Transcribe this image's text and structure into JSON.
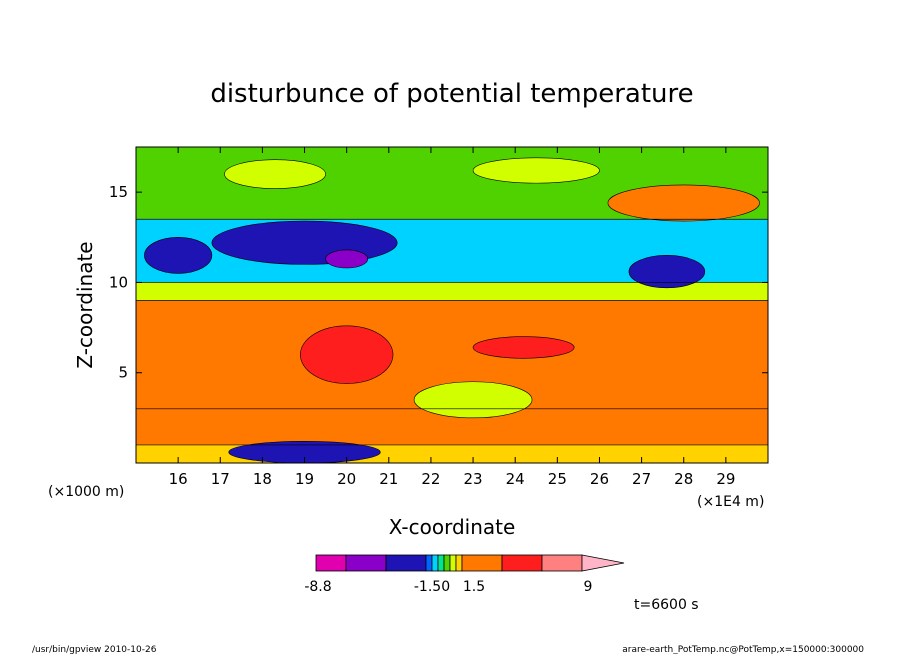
{
  "chart_data": {
    "type": "heatmap",
    "title": "disturbunce of potential temperature",
    "xlabel": "X-coordinate",
    "ylabel": "Z-coordinate",
    "x_units_left": "(×1000 m)",
    "x_units_right": "(×1E4 m)",
    "x_ticks": [
      16,
      17,
      18,
      19,
      20,
      21,
      22,
      23,
      24,
      25,
      26,
      27,
      28,
      29
    ],
    "y_ticks": [
      5,
      10,
      15
    ],
    "xlim": [
      15.0,
      30.0
    ],
    "ylim": [
      0.0,
      17.5
    ],
    "colorbar": {
      "labels": [
        "-8.8",
        "-1.50",
        "1.5",
        "9"
      ],
      "colors": [
        "#e000b0",
        "#8a00c8",
        "#1e14b4",
        "#0064ff",
        "#00d2ff",
        "#00e68c",
        "#50d200",
        "#d2ff00",
        "#ffd200",
        "#ff7800",
        "#ff1e1e",
        "#ff8080",
        "#ffb4c8"
      ]
    },
    "bands": [
      {
        "name": "surface-band",
        "z_bottom": 0.0,
        "z_top": 1.0,
        "color": "#ffd200"
      },
      {
        "name": "lower-band",
        "z_bottom": 1.0,
        "z_top": 3.0,
        "color": "#ff7800"
      },
      {
        "name": "middle-band",
        "z_bottom": 3.0,
        "z_top": 9.0,
        "color": "#ff7800"
      },
      {
        "name": "yellow-band",
        "z_bottom": 9.0,
        "z_top": 10.0,
        "color": "#d2ff00"
      },
      {
        "name": "cyan-band",
        "z_bottom": 10.0,
        "z_top": 13.5,
        "color": "#00d2ff"
      },
      {
        "name": "upper-band",
        "z_bottom": 13.5,
        "z_top": 17.5,
        "color": "#50d200"
      }
    ],
    "blobs": [
      {
        "x": 19.0,
        "z": 12.2,
        "rx": 2.2,
        "rz": 1.2,
        "color": "#1e14b4"
      },
      {
        "x": 20.0,
        "z": 11.3,
        "rx": 0.5,
        "rz": 0.5,
        "color": "#8a00c8"
      },
      {
        "x": 16.0,
        "z": 11.5,
        "rx": 0.8,
        "rz": 1.0,
        "color": "#1e14b4"
      },
      {
        "x": 27.6,
        "z": 10.6,
        "rx": 0.9,
        "rz": 0.9,
        "color": "#1e14b4"
      },
      {
        "x": 20.0,
        "z": 6.0,
        "rx": 1.1,
        "rz": 1.6,
        "color": "#ff1e1e"
      },
      {
        "x": 24.2,
        "z": 6.4,
        "rx": 1.2,
        "rz": 0.6,
        "color": "#ff1e1e"
      },
      {
        "x": 28.0,
        "z": 14.4,
        "rx": 1.8,
        "rz": 1.0,
        "color": "#ff7800"
      },
      {
        "x": 23.0,
        "z": 3.5,
        "rx": 1.4,
        "rz": 1.0,
        "color": "#d2ff00"
      },
      {
        "x": 18.3,
        "z": 16.0,
        "rx": 1.2,
        "rz": 0.8,
        "color": "#d2ff00"
      },
      {
        "x": 24.5,
        "z": 16.2,
        "rx": 1.5,
        "rz": 0.7,
        "color": "#d2ff00"
      },
      {
        "x": 19.0,
        "z": 0.6,
        "rx": 1.8,
        "rz": 0.6,
        "color": "#1e14b4"
      }
    ],
    "annotations": {
      "time": "t=6600 s",
      "footer_left": "/usr/bin/gpview   2010-10-26",
      "footer_right": "arare-earth_PotTemp.nc@PotTemp,x=150000:300000"
    }
  }
}
